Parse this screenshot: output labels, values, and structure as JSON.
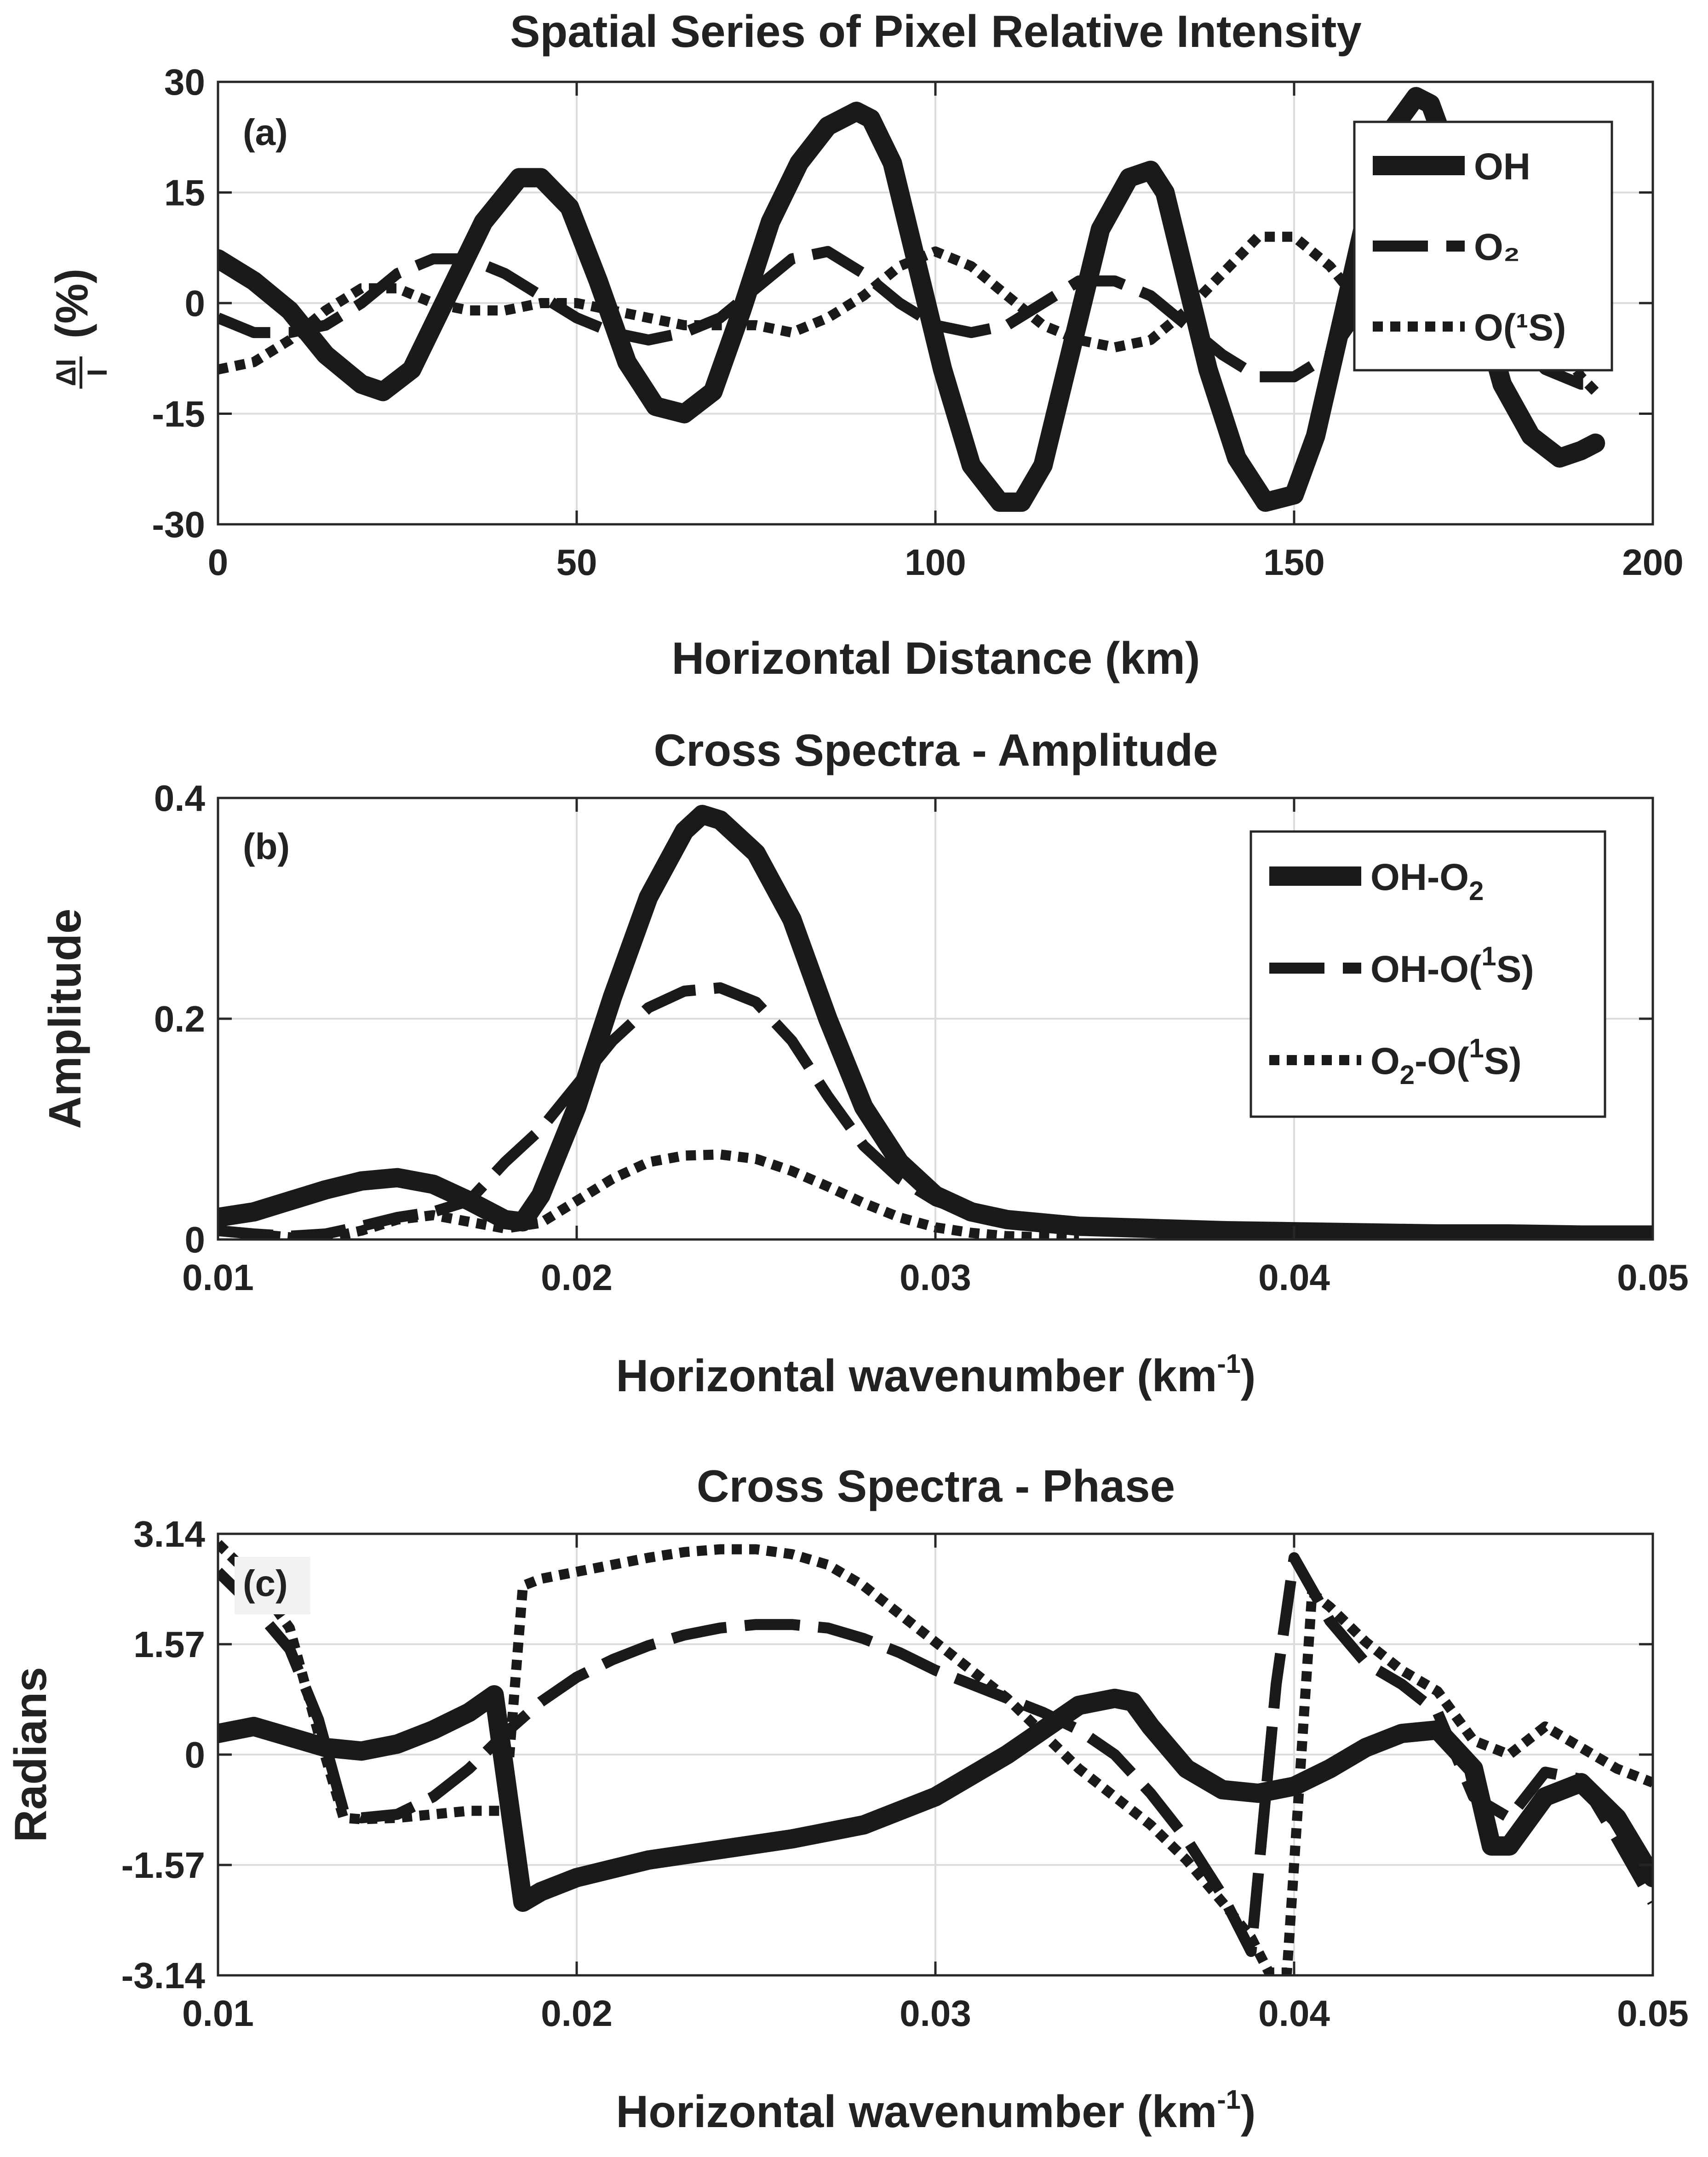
{
  "chart_data": [
    {
      "panel_label": "(a)",
      "type": "line",
      "title": "Spatial Series of Pixel Relative Intensity",
      "xlabel": "Horizontal Distance (km)",
      "ylabel_main": "(%)",
      "ylabel_frac_num": "ΔI",
      "ylabel_frac_den": "I",
      "xlim": [
        0,
        200
      ],
      "ylim": [
        -30,
        30
      ],
      "xticks": [
        0,
        50,
        100,
        150,
        200
      ],
      "xtick_labels": [
        "0",
        "50",
        "100",
        "150",
        "200"
      ],
      "yticks": [
        -30,
        -15,
        0,
        15,
        30
      ],
      "ytick_labels": [
        "-30",
        "-15",
        "0",
        "15",
        "30"
      ],
      "grid": true,
      "legend_position": "top-right",
      "series": [
        {
          "name": "OH",
          "label": "OH",
          "style": "solid-thick",
          "x": [
            0,
            5,
            10,
            15,
            20,
            23,
            27,
            32,
            37,
            42,
            45,
            49,
            53,
            57,
            61,
            65,
            69,
            73,
            77,
            81,
            85,
            89,
            91,
            94,
            97,
            101,
            105,
            109,
            112,
            115,
            119,
            123,
            127,
            130,
            132,
            135,
            138,
            142,
            146,
            150,
            153,
            157,
            161,
            164,
            167,
            169,
            172,
            175,
            179,
            183,
            187,
            190,
            192
          ],
          "y": [
            6,
            3,
            -1,
            -7,
            -11,
            -12,
            -9,
            1,
            11,
            17,
            17,
            13,
            3,
            -8,
            -14,
            -15,
            -12,
            -1,
            11,
            19,
            24,
            26,
            25,
            19,
            7,
            -9,
            -22,
            -27,
            -27,
            -22,
            -6,
            10,
            17,
            18,
            15,
            3,
            -9,
            -21,
            -27,
            -26,
            -18,
            -1,
            16,
            24,
            28,
            27,
            19,
            3,
            -11,
            -18,
            -21,
            -20,
            -19
          ]
        },
        {
          "name": "O2",
          "label": "O₂",
          "style": "dashed",
          "x": [
            0,
            5,
            10,
            15,
            20,
            25,
            30,
            35,
            40,
            45,
            50,
            55,
            60,
            65,
            70,
            75,
            80,
            85,
            90,
            95,
            100,
            105,
            110,
            115,
            120,
            125,
            130,
            135,
            140,
            145,
            150,
            155,
            160,
            165,
            170,
            175,
            180,
            185,
            190,
            192
          ],
          "y": [
            -2,
            -4,
            -4,
            -3,
            0,
            4,
            6,
            6,
            4,
            1,
            -2,
            -4,
            -5,
            -4,
            -2,
            2,
            6,
            7,
            4,
            0,
            -3,
            -4,
            -3,
            0,
            3,
            3,
            1,
            -3,
            -7,
            -10,
            -10,
            -7,
            0,
            5,
            6,
            2,
            -4,
            -9,
            -11,
            -11
          ]
        },
        {
          "name": "O1S",
          "label": "O(¹S)",
          "style": "dotted",
          "x": [
            0,
            5,
            10,
            15,
            20,
            25,
            30,
            35,
            40,
            45,
            50,
            55,
            60,
            65,
            70,
            75,
            80,
            85,
            90,
            95,
            100,
            105,
            110,
            115,
            120,
            125,
            130,
            135,
            140,
            145,
            150,
            155,
            160,
            165,
            170,
            175,
            180,
            185,
            190,
            192
          ],
          "y": [
            -9,
            -8,
            -5,
            -1,
            2,
            2,
            0,
            -1,
            -1,
            0,
            0,
            -1,
            -2,
            -3,
            -3,
            -3,
            -4,
            -2,
            1,
            5,
            7,
            5,
            1,
            -3,
            -5,
            -6,
            -5,
            -1,
            4,
            9,
            9,
            5,
            -1,
            -4,
            -3,
            -1,
            0,
            -3,
            -10,
            -12
          ]
        }
      ]
    },
    {
      "panel_label": "(b)",
      "type": "line",
      "title": "Cross Spectra - Amplitude",
      "xlabel": "Horizontal wavenumber (km",
      "xlabel_sup": "-1",
      "xlabel_end": ")",
      "ylabel": "Amplitude",
      "xlim": [
        0.01,
        0.05
      ],
      "ylim": [
        0,
        0.4
      ],
      "xticks": [
        0.01,
        0.02,
        0.03,
        0.04,
        0.05
      ],
      "xtick_labels": [
        "0.01",
        "0.02",
        "0.03",
        "0.04",
        "0.05"
      ],
      "yticks": [
        0,
        0.2,
        0.4
      ],
      "ytick_labels": [
        "0",
        "0.2",
        "0.4"
      ],
      "grid": true,
      "legend_position": "top-right",
      "series": [
        {
          "name": "OH-O2",
          "label": "OH-O₂",
          "style": "solid-thick",
          "x": [
            0.01,
            0.011,
            0.012,
            0.013,
            0.014,
            0.015,
            0.016,
            0.017,
            0.018,
            0.0185,
            0.019,
            0.02,
            0.021,
            0.022,
            0.023,
            0.0235,
            0.024,
            0.025,
            0.026,
            0.027,
            0.028,
            0.029,
            0.03,
            0.031,
            0.032,
            0.034,
            0.036,
            0.038,
            0.04,
            0.042,
            0.044,
            0.046,
            0.048,
            0.05
          ],
          "y": [
            0.02,
            0.025,
            0.035,
            0.045,
            0.053,
            0.056,
            0.05,
            0.035,
            0.018,
            0.016,
            0.04,
            0.12,
            0.22,
            0.31,
            0.37,
            0.385,
            0.38,
            0.35,
            0.29,
            0.2,
            0.12,
            0.07,
            0.04,
            0.025,
            0.018,
            0.012,
            0.01,
            0.008,
            0.007,
            0.006,
            0.005,
            0.005,
            0.004,
            0.004
          ]
        },
        {
          "name": "OH-O1S",
          "label": "OH-O(¹S)",
          "style": "dashed",
          "x": [
            0.01,
            0.011,
            0.012,
            0.013,
            0.014,
            0.015,
            0.016,
            0.017,
            0.018,
            0.019,
            0.02,
            0.021,
            0.022,
            0.023,
            0.024,
            0.025,
            0.026,
            0.027,
            0.028,
            0.029,
            0.03,
            0.031,
            0.032,
            0.033,
            0.034,
            0.036,
            0.038,
            0.04
          ],
          "y": [
            0.008,
            0.005,
            0.003,
            0.005,
            0.012,
            0.02,
            0.025,
            0.035,
            0.07,
            0.1,
            0.14,
            0.18,
            0.21,
            0.225,
            0.228,
            0.215,
            0.18,
            0.13,
            0.085,
            0.055,
            0.035,
            0.024,
            0.018,
            0.014,
            0.012,
            0.009,
            0.007,
            0.005
          ]
        },
        {
          "name": "O2-O1S",
          "label": "O₂-O(¹S)",
          "style": "dotted",
          "x": [
            0.01,
            0.011,
            0.012,
            0.013,
            0.014,
            0.015,
            0.016,
            0.017,
            0.018,
            0.019,
            0.02,
            0.021,
            0.022,
            0.023,
            0.024,
            0.025,
            0.026,
            0.027,
            0.028,
            0.029,
            0.03,
            0.031,
            0.032,
            0.033,
            0.034
          ],
          "y": [
            0.008,
            0.005,
            0.002,
            0.001,
            0.008,
            0.018,
            0.022,
            0.016,
            0.01,
            0.015,
            0.035,
            0.055,
            0.07,
            0.076,
            0.077,
            0.073,
            0.062,
            0.048,
            0.033,
            0.02,
            0.011,
            0.006,
            0.003,
            0.002,
            0.001
          ]
        }
      ],
      "legend_labels": {
        "a": "OH-O",
        "a_sub": "2",
        "b": "OH-O(",
        "b_sup": "1",
        "b_end": "S)",
        "c": "O",
        "c_sub": "2",
        "c_mid": "-O(",
        "c_sup": "1",
        "c_end": "S)"
      }
    },
    {
      "panel_label": "(c)",
      "type": "line",
      "title": "Cross Spectra - Phase",
      "xlabel": "Horizontal wavenumber (km",
      "xlabel_sup": "-1",
      "xlabel_end": ")",
      "ylabel": "Radians",
      "xlim": [
        0.01,
        0.05
      ],
      "ylim": [
        -3.14,
        3.14
      ],
      "xticks": [
        0.01,
        0.02,
        0.03,
        0.04,
        0.05
      ],
      "xtick_labels": [
        "0.01",
        "0.02",
        "0.03",
        "0.04",
        "0.05"
      ],
      "yticks": [
        -3.14,
        -1.57,
        0,
        1.57,
        3.14
      ],
      "ytick_labels": [
        "-3.14",
        "-1.57",
        "0",
        "1.57",
        "3.14"
      ],
      "grid": true,
      "series": [
        {
          "name": "OH-O2",
          "style": "solid-thick",
          "x": [
            0.01,
            0.011,
            0.012,
            0.013,
            0.014,
            0.015,
            0.016,
            0.017,
            0.0177,
            0.0185,
            0.019,
            0.02,
            0.022,
            0.024,
            0.026,
            0.028,
            0.03,
            0.031,
            0.032,
            0.033,
            0.034,
            0.035,
            0.0355,
            0.036,
            0.037,
            0.038,
            0.039,
            0.04,
            0.041,
            0.042,
            0.043,
            0.044,
            0.045,
            0.0455,
            0.046,
            0.047,
            0.048,
            0.049,
            0.05
          ],
          "y": [
            0.3,
            0.4,
            0.25,
            0.1,
            0.05,
            0.15,
            0.35,
            0.6,
            0.85,
            -2.1,
            -1.95,
            -1.75,
            -1.5,
            -1.35,
            -1.2,
            -1.0,
            -0.6,
            -0.3,
            0.0,
            0.35,
            0.7,
            0.8,
            0.75,
            0.4,
            -0.2,
            -0.5,
            -0.55,
            -0.45,
            -0.2,
            0.1,
            0.3,
            0.35,
            -0.2,
            -1.3,
            -1.3,
            -0.6,
            -0.4,
            -0.9,
            -1.75
          ]
        },
        {
          "name": "OH-O1S",
          "style": "dashed",
          "x": [
            0.01,
            0.011,
            0.012,
            0.0128,
            0.0135,
            0.014,
            0.015,
            0.016,
            0.017,
            0.018,
            0.019,
            0.02,
            0.021,
            0.022,
            0.023,
            0.024,
            0.025,
            0.026,
            0.027,
            0.028,
            0.029,
            0.03,
            0.031,
            0.032,
            0.033,
            0.034,
            0.035,
            0.036,
            0.037,
            0.038,
            0.0388,
            0.0395,
            0.04,
            0.041,
            0.042,
            0.043,
            0.044,
            0.045,
            0.046,
            0.047,
            0.048,
            0.049,
            0.05
          ],
          "y": [
            2.6,
            2.1,
            1.5,
            0.5,
            -0.8,
            -0.9,
            -0.85,
            -0.6,
            -0.2,
            0.3,
            0.75,
            1.1,
            1.35,
            1.55,
            1.7,
            1.8,
            1.85,
            1.85,
            1.8,
            1.65,
            1.45,
            1.2,
            1.0,
            0.8,
            0.6,
            0.35,
            0.0,
            -0.55,
            -1.2,
            -2.0,
            -2.8,
            1.0,
            2.8,
            1.9,
            1.3,
            1.0,
            0.6,
            -0.6,
            -0.9,
            -0.25,
            -0.35,
            -1.2,
            -2.1
          ]
        },
        {
          "name": "O2-O1S",
          "style": "dotted",
          "x": [
            0.01,
            0.011,
            0.012,
            0.0128,
            0.0135,
            0.014,
            0.015,
            0.016,
            0.017,
            0.018,
            0.0185,
            0.019,
            0.02,
            0.021,
            0.022,
            0.023,
            0.024,
            0.025,
            0.026,
            0.027,
            0.028,
            0.029,
            0.03,
            0.031,
            0.032,
            0.033,
            0.034,
            0.035,
            0.036,
            0.037,
            0.038,
            0.0388,
            0.0393,
            0.0398,
            0.0405,
            0.041,
            0.042,
            0.043,
            0.044,
            0.045,
            0.046,
            0.047,
            0.048,
            0.049,
            0.05
          ],
          "y": [
            3.0,
            2.5,
            1.8,
            0.3,
            -0.9,
            -0.92,
            -0.9,
            -0.85,
            -0.8,
            -0.8,
            2.4,
            2.5,
            2.6,
            2.7,
            2.8,
            2.88,
            2.92,
            2.92,
            2.85,
            2.7,
            2.4,
            2.0,
            1.6,
            1.2,
            0.8,
            0.3,
            -0.2,
            -0.6,
            -1.0,
            -1.5,
            -2.1,
            -2.6,
            -3.1,
            -3.1,
            2.3,
            2.1,
            1.6,
            1.2,
            0.9,
            0.2,
            0.0,
            0.4,
            0.1,
            -0.2,
            -0.4
          ]
        }
      ]
    }
  ]
}
